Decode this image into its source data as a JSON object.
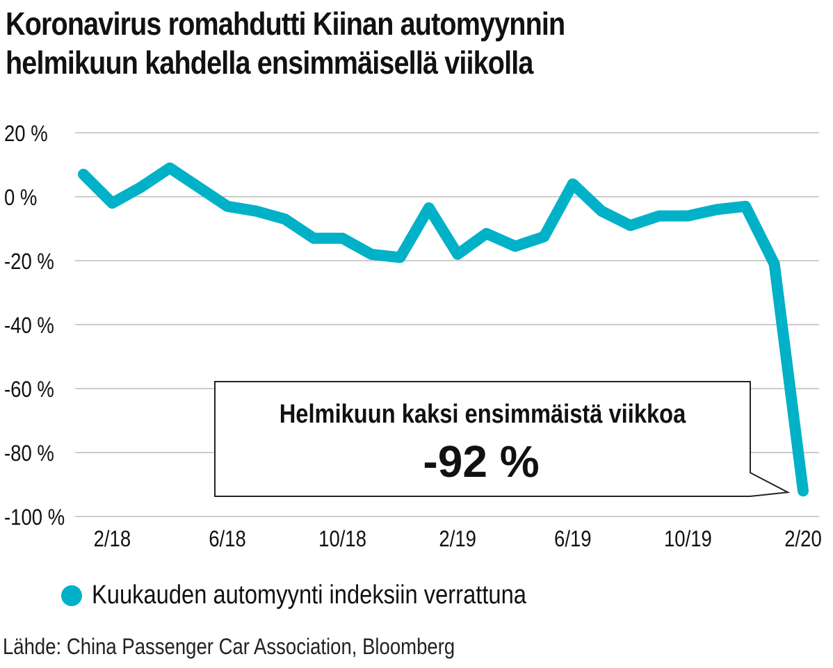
{
  "title_lines": [
    "Koronavirus romahdutti Kiinan automyynnin",
    "helmikuun kahdella ensimmäisellä viikolla"
  ],
  "source": "Lähde: China Passenger Car Association, Bloomberg",
  "colors": {
    "line": "#00b1c7",
    "grid": "#cccccc",
    "text": "#111111"
  },
  "chart_data": {
    "type": "line",
    "title": "Koronavirus romahdutti Kiinan automyynnin helmikuun kahdella ensimmäisellä viikolla",
    "xlabel": "",
    "ylabel": "",
    "ylim": [
      -100,
      20
    ],
    "y_ticks": [
      20,
      0,
      -20,
      -40,
      -60,
      -80,
      -100
    ],
    "y_tick_labels": [
      "20 %",
      "0 %",
      "-20 %",
      "-40 %",
      "-60 %",
      "-80 %",
      "-100 %"
    ],
    "x_tick_labels": [
      "2/18",
      "6/18",
      "10/18",
      "2/19",
      "6/19",
      "10/19",
      "2/20"
    ],
    "grid": true,
    "legend_position": "bottom-left",
    "series": [
      {
        "name": "Kuukauden automyynti indeksiin verrattuna",
        "color": "#00b1c7",
        "x": [
          "1/18",
          "2/18",
          "3/18",
          "4/18",
          "5/18",
          "6/18",
          "7/18",
          "8/18",
          "9/18",
          "10/18",
          "11/18",
          "12/18",
          "1/19",
          "2/19",
          "3/19",
          "4/19",
          "5/19",
          "6/19",
          "7/19",
          "8/19",
          "9/19",
          "10/19",
          "11/19",
          "12/19",
          "1/20",
          "2/20"
        ],
        "values": [
          7,
          -2,
          3,
          9,
          3,
          -3,
          -4.5,
          -7,
          -13,
          -13,
          -18,
          -19,
          -3.5,
          -18,
          -11.5,
          -15.5,
          -12.5,
          4,
          -4.5,
          -9,
          -6,
          -6,
          -4,
          -3,
          -21,
          -92
        ]
      }
    ],
    "annotation": {
      "label": "Helmikuun kaksi ensimmäistä viikkoa",
      "value": "-92 %"
    }
  }
}
